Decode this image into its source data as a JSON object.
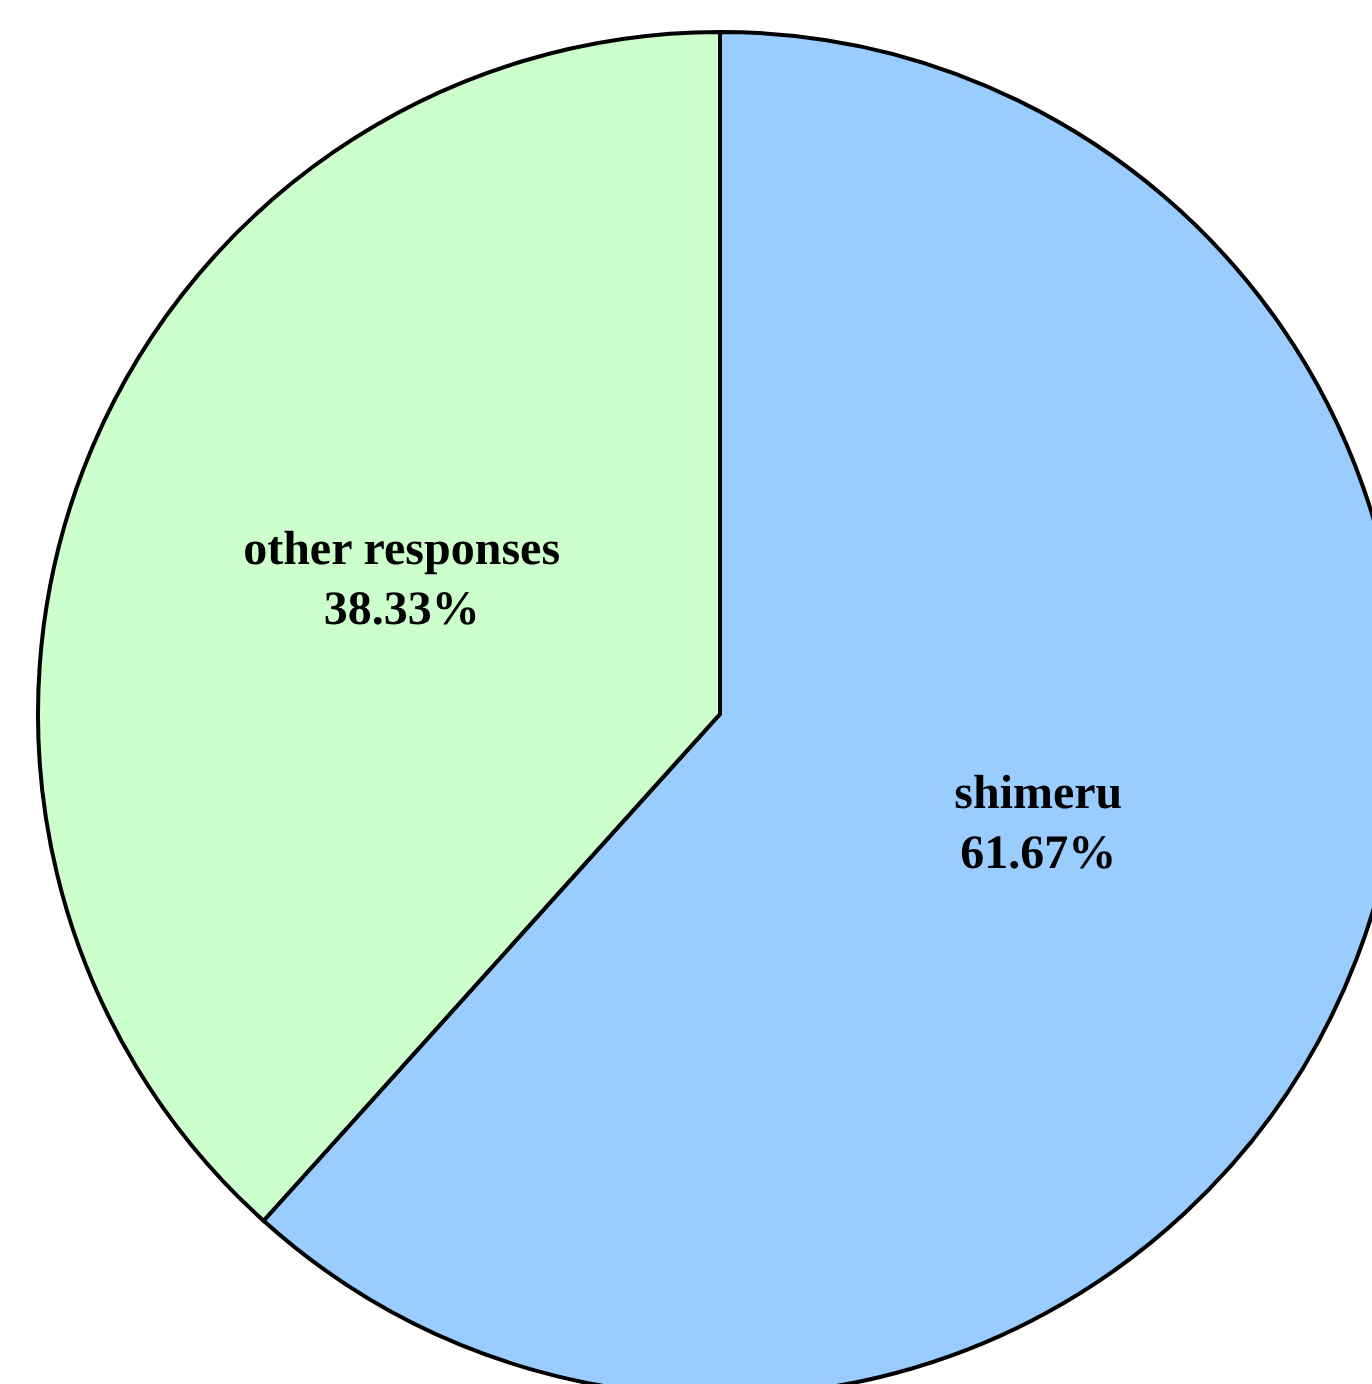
{
  "chart_data": {
    "type": "pie",
    "categories": [
      "shimeru",
      "other responses"
    ],
    "values": [
      61.67,
      38.33
    ],
    "colors": [
      "#99ccff",
      "#ccffcc"
    ],
    "value_labels": [
      "61.67%",
      "38.33%"
    ],
    "legend": false
  }
}
